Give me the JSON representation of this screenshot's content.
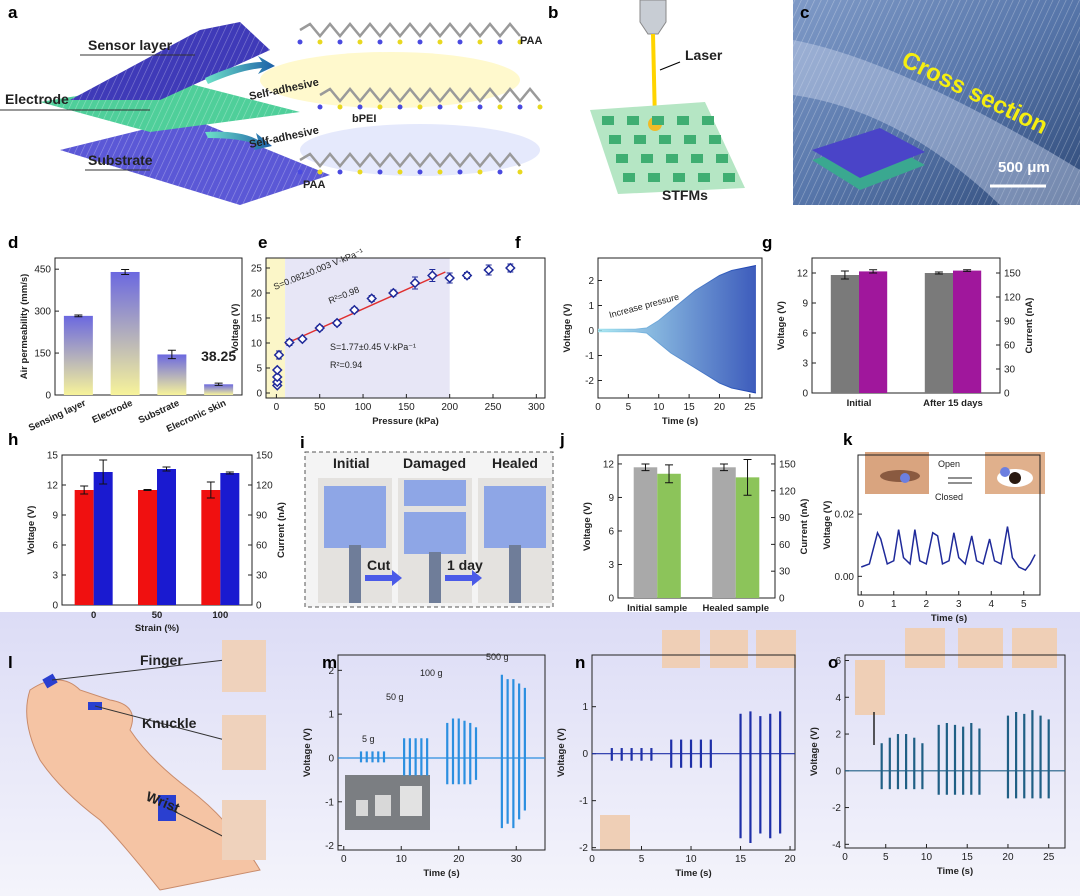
{
  "illustrations": {
    "a": {
      "label": "a",
      "texts": [
        "Sensor layer",
        "Electrode",
        "Substrate",
        "Self-adhesive",
        "Self-adhesive",
        "PAA",
        "bPEI",
        "PAA"
      ]
    },
    "b": {
      "label": "b",
      "texts": [
        "Laser",
        "STFMs"
      ]
    },
    "c": {
      "label": "c",
      "texts": [
        "Cross section",
        "500 μm"
      ]
    },
    "i": {
      "label": "i",
      "texts": [
        "Initial",
        "Damaged",
        "Healed",
        "Cut",
        "1 day"
      ]
    },
    "l": {
      "label": "l",
      "texts": [
        "Finger",
        "Knuckle",
        "Wrist"
      ]
    }
  },
  "chart_data": [
    {
      "label": "d",
      "type": "bar",
      "ylabel": "Air permeability (mm/s)",
      "categories": [
        "Sensing layer",
        "Electrode",
        "Substrate",
        "Elecronic skin"
      ],
      "values": [
        283,
        440,
        145,
        38.25
      ],
      "errors": [
        3,
        9,
        15,
        4
      ],
      "value_labels": [
        null,
        null,
        null,
        "38.25"
      ],
      "gradient": [
        "#6b68e0",
        "#f7f39a"
      ],
      "ylim": [
        0,
        490
      ],
      "yticks": [
        0,
        150,
        300,
        450
      ]
    },
    {
      "label": "e",
      "type": "scatter",
      "xlabel": "Pressure (kPa)",
      "ylabel": "Voltage (V)",
      "x": [
        1,
        1,
        1,
        1,
        3,
        15,
        30,
        50,
        70,
        90,
        110,
        135,
        160,
        180,
        200,
        220,
        245,
        270
      ],
      "values": [
        1.5,
        2.2,
        3.2,
        4.6,
        7.6,
        10.1,
        10.8,
        13,
        14,
        16.6,
        18.9,
        20,
        22,
        23.5,
        23,
        23.5,
        24.6,
        25
      ],
      "errors": [
        0.3,
        0.3,
        0.4,
        0.4,
        0.8,
        0.6,
        0.4,
        0.5,
        0.5,
        0.5,
        0.6,
        0.6,
        1.2,
        1.2,
        1,
        0.6,
        1,
        0.8
      ],
      "color": "#1f2a9a",
      "fit": {
        "x": [
          10,
          195
        ],
        "y": [
          9.8,
          24.2
        ],
        "color": "#e03030"
      },
      "shaded_regions": [
        {
          "x": [
            -12,
            10
          ],
          "color": "#fbf6c8"
        },
        {
          "x": [
            10,
            200
          ],
          "color": "#e7e6f6"
        }
      ],
      "annotations": [
        "S=0.082±0.003 V·kPa⁻¹",
        "R²=0.98",
        "S=1.77±0.45 V·kPa⁻¹",
        "R²=0.94"
      ],
      "xlim": [
        -12,
        310
      ],
      "xticks": [
        0,
        50,
        100,
        150,
        200,
        250,
        300
      ],
      "ylim": [
        -1,
        27
      ],
      "yticks": [
        0,
        5,
        10,
        15,
        20,
        25
      ]
    },
    {
      "label": "f",
      "type": "area",
      "xlabel": "Time (s)",
      "ylabel": "Voltage (V)",
      "x": [
        0,
        2,
        4,
        6,
        8,
        10,
        12,
        14,
        16,
        18,
        20,
        22,
        24,
        26
      ],
      "upper": [
        0.05,
        0.05,
        0.05,
        0.05,
        0.1,
        0.4,
        0.8,
        1.2,
        1.6,
        1.9,
        2.2,
        2.4,
        2.5,
        2.6
      ],
      "lower": [
        -0.05,
        -0.05,
        -0.05,
        -0.05,
        -0.1,
        -0.5,
        -0.9,
        -1.2,
        -1.5,
        -1.8,
        -2.1,
        -2.3,
        -2.4,
        -2.5
      ],
      "gradient": [
        "#9fe3ef",
        "#1b3fb0"
      ],
      "annotations": [
        "Increase pressure"
      ],
      "xlim": [
        0,
        27
      ],
      "xticks": [
        0,
        5,
        10,
        15,
        20,
        25
      ],
      "ylim": [
        -2.7,
        2.9
      ],
      "yticks": [
        -2,
        -1,
        0,
        1,
        2
      ]
    },
    {
      "label": "g",
      "type": "bar",
      "ylabel": "Voltage (V)",
      "y2label": "Current (nA)",
      "axis_label_colors": {
        "y": "#222222",
        "y2": "#a0179c"
      },
      "categories": [
        "Initial",
        "After 15 days"
      ],
      "series": [
        {
          "values": [
            11.8,
            12
          ],
          "errors": [
            0.4,
            0.1
          ],
          "color": "#7a7a7a"
        },
        {
          "values": [
            152,
            153
          ],
          "errors": [
            2,
            1
          ],
          "color": "#a0179c",
          "axis": "y2"
        }
      ],
      "ylim": [
        0,
        13.5
      ],
      "yticks": [
        0,
        3,
        6,
        9,
        12
      ],
      "y2lim": [
        0,
        168.75
      ],
      "y2ticks": [
        0,
        30,
        60,
        90,
        120,
        150
      ]
    },
    {
      "label": "h",
      "type": "bar",
      "xlabel": "Strain (%)",
      "ylabel": "Voltage (V)",
      "y2label": "Current (nA)",
      "axis_label_colors": {
        "y": "#e00000",
        "y2": "#1a1acc"
      },
      "categories": [
        "0",
        "50",
        "100"
      ],
      "series": [
        {
          "values": [
            11.5,
            11.5,
            11.5
          ],
          "errors": [
            0.4,
            0.05,
            0.8
          ],
          "color": "#f01010"
        },
        {
          "values": [
            133,
            136,
            132
          ],
          "errors": [
            12,
            2,
            1
          ],
          "color": "#1a1ad0",
          "axis": "y2"
        }
      ],
      "ylim": [
        0,
        15
      ],
      "yticks": [
        0,
        3,
        6,
        9,
        12,
        15
      ],
      "y2lim": [
        0,
        150
      ],
      "y2ticks": [
        0,
        30,
        60,
        90,
        120,
        150
      ]
    },
    {
      "label": "j",
      "type": "bar",
      "ylabel": "Voltage (V)",
      "y2label": "Current (nA)",
      "axis_label_colors": {
        "y": "#222222",
        "y2": "#3a8a2a"
      },
      "categories": [
        "Initial sample",
        "Healed sample"
      ],
      "series": [
        {
          "values": [
            11.7,
            11.7
          ],
          "errors": [
            0.3,
            0.3
          ],
          "color": "#a9a9a9"
        },
        {
          "values": [
            139,
            135
          ],
          "errors": [
            10,
            20
          ],
          "color": "#8cc45a",
          "axis": "y2"
        }
      ],
      "ylim": [
        0,
        12.8
      ],
      "yticks": [
        0,
        3,
        6,
        9,
        12
      ],
      "y2lim": [
        0,
        160
      ],
      "y2ticks": [
        0,
        30,
        60,
        90,
        120,
        150
      ]
    },
    {
      "label": "k",
      "type": "line",
      "xlabel": "Time (s)",
      "ylabel": "Voltage (V)",
      "color": "#1f2a9a",
      "annotations": [
        "Open",
        "Closed"
      ],
      "x": [
        0,
        0.25,
        0.5,
        0.6,
        0.8,
        1.0,
        1.15,
        1.3,
        1.5,
        1.65,
        1.8,
        2.0,
        2.2,
        2.35,
        2.5,
        2.7,
        2.85,
        3.0,
        3.2,
        3.4,
        3.55,
        3.75,
        3.95,
        4.1,
        4.3,
        4.5,
        4.65,
        4.85,
        5.05,
        5.2,
        5.35
      ],
      "values": [
        0.003,
        0.004,
        0.014,
        0.012,
        0.004,
        0.005,
        0.015,
        0.006,
        0.004,
        0.015,
        0.005,
        0.004,
        0.014,
        0.013,
        0.004,
        0.005,
        0.014,
        0.006,
        0.004,
        0.013,
        0.005,
        0.004,
        0.012,
        0.005,
        0.004,
        0.016,
        0.006,
        0.003,
        0.002,
        0.004,
        0.007
      ],
      "xlim": [
        -0.1,
        5.5
      ],
      "xticks": [
        0,
        1,
        2,
        3,
        4,
        5
      ],
      "ylim": [
        -0.006,
        0.039
      ],
      "yticks": [
        {
          "value": 0,
          "label": "0.00"
        },
        {
          "value": 0.02,
          "label": "0.02"
        }
      ]
    },
    {
      "label": "m",
      "type": "spike",
      "xlabel": "Time (s)",
      "ylabel": "Voltage (V)",
      "color": "#2b8fe0",
      "annotations": [
        "5 g",
        "50 g",
        "100 g",
        "500 g"
      ],
      "x": [
        3,
        4,
        5,
        6,
        7,
        10.5,
        11.5,
        12.5,
        13.5,
        14.5,
        18,
        19,
        20,
        21,
        22,
        23,
        27.5,
        28.5,
        29.5,
        30.5,
        31.5
      ],
      "values": [
        0.15,
        0.15,
        0.15,
        0.15,
        0.15,
        0.45,
        0.45,
        0.45,
        0.45,
        0.45,
        0.8,
        0.9,
        0.9,
        0.85,
        0.8,
        0.7,
        1.9,
        1.8,
        1.8,
        1.7,
        1.6
      ],
      "min_values": [
        -0.1,
        -0.1,
        -0.1,
        -0.1,
        -0.1,
        -0.4,
        -0.4,
        -0.4,
        -0.4,
        -0.4,
        -0.6,
        -0.6,
        -0.6,
        -0.6,
        -0.6,
        -0.5,
        -1.6,
        -1.5,
        -1.6,
        -1.4,
        -1.2
      ],
      "xlim": [
        -1,
        35
      ],
      "xticks": [
        0,
        10,
        20,
        30
      ],
      "ylim": [
        -2.1,
        2.35
      ],
      "yticks": [
        -2,
        -1,
        0,
        1,
        2
      ]
    },
    {
      "label": "n",
      "type": "spike",
      "xlabel": "Time (s)",
      "ylabel": "Voltage (V)",
      "color": "#1e2fa8",
      "x": [
        2,
        3,
        4,
        5,
        6,
        8,
        9,
        10,
        11,
        12,
        15,
        16,
        17,
        18,
        19
      ],
      "values": [
        0.12,
        0.12,
        0.12,
        0.12,
        0.12,
        0.3,
        0.3,
        0.3,
        0.3,
        0.3,
        0.85,
        0.9,
        0.8,
        0.85,
        0.9
      ],
      "min_values": [
        -0.15,
        -0.15,
        -0.15,
        -0.15,
        -0.15,
        -0.3,
        -0.3,
        -0.3,
        -0.3,
        -0.3,
        -1.8,
        -1.9,
        -1.7,
        -1.8,
        -1.7
      ],
      "xlim": [
        0,
        20.5
      ],
      "xticks": [
        0,
        5,
        10,
        15,
        20
      ],
      "ylim": [
        -2.05,
        2.1
      ],
      "yticks": [
        -2,
        -1,
        0,
        1
      ]
    },
    {
      "label": "o",
      "type": "spike",
      "xlabel": "Time (s)",
      "ylabel": "Voltage (V)",
      "color": "#1f5f85",
      "x": [
        4.5,
        5.5,
        6.5,
        7.5,
        8.5,
        9.5,
        11.5,
        12.5,
        13.5,
        14.5,
        15.5,
        16.5,
        20,
        21,
        22,
        23,
        24,
        25
      ],
      "values": [
        1.5,
        1.8,
        2,
        2,
        1.8,
        1.5,
        2.5,
        2.6,
        2.5,
        2.4,
        2.6,
        2.3,
        3,
        3.2,
        3.1,
        3.3,
        3,
        2.8
      ],
      "min_values": [
        -1,
        -1,
        -1,
        -1,
        -1,
        -1,
        -1.3,
        -1.3,
        -1.3,
        -1.3,
        -1.3,
        -1.3,
        -1.5,
        -1.5,
        -1.5,
        -1.5,
        -1.5,
        -1.5
      ],
      "xlim": [
        0,
        27
      ],
      "xticks": [
        0,
        5,
        10,
        15,
        20,
        25
      ],
      "ylim": [
        -4.2,
        6.3
      ],
      "yticks": [
        -4,
        -2,
        0,
        2,
        4,
        6
      ]
    }
  ]
}
